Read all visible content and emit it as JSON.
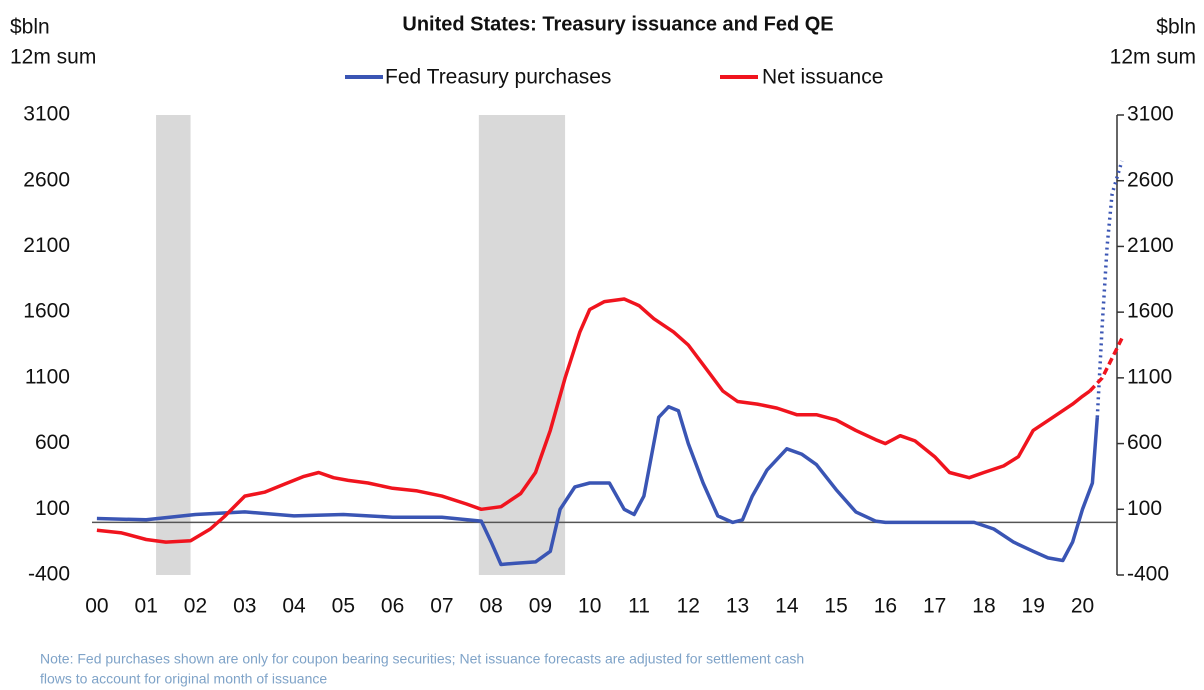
{
  "chart_data": {
    "type": "line",
    "title": "United States: Treasury issuance and Fed QE",
    "y_label": [
      "$bln",
      "12m sum"
    ],
    "y2_label": [
      "$bln",
      "12m sum"
    ],
    "note": [
      "Note: Fed purchases shown are only for coupon bearing securities; Net issuance forecasts are adjusted for settlement cash",
      "flows to account for original month of issuance"
    ],
    "xlim": [
      1999.9,
      2020.7
    ],
    "xticks": [
      {
        "value": 2000,
        "label": "00"
      },
      {
        "value": 2001,
        "label": "01"
      },
      {
        "value": 2002,
        "label": "02"
      },
      {
        "value": 2003,
        "label": "03"
      },
      {
        "value": 2004,
        "label": "04"
      },
      {
        "value": 2005,
        "label": "05"
      },
      {
        "value": 2006,
        "label": "06"
      },
      {
        "value": 2007,
        "label": "07"
      },
      {
        "value": 2008,
        "label": "08"
      },
      {
        "value": 2009,
        "label": "09"
      },
      {
        "value": 2010,
        "label": "10"
      },
      {
        "value": 2011,
        "label": "11"
      },
      {
        "value": 2012,
        "label": "12"
      },
      {
        "value": 2013,
        "label": "13"
      },
      {
        "value": 2014,
        "label": "14"
      },
      {
        "value": 2015,
        "label": "15"
      },
      {
        "value": 2016,
        "label": "16"
      },
      {
        "value": 2017,
        "label": "17"
      },
      {
        "value": 2018,
        "label": "18"
      },
      {
        "value": 2019,
        "label": "19"
      },
      {
        "value": 2020,
        "label": "20"
      }
    ],
    "ylim": [
      -400,
      3100
    ],
    "yticks": [
      -400,
      100,
      600,
      1100,
      1600,
      2100,
      2600,
      3100
    ],
    "y2lim": [
      -400,
      3100
    ],
    "y2ticks": [
      -400,
      100,
      600,
      1100,
      1600,
      2100,
      2600,
      3100
    ],
    "zero_line": 0,
    "shaded": [
      [
        2001.2,
        2001.9
      ],
      [
        2007.75,
        2009.5
      ]
    ],
    "shade_color": "#d9d9d9",
    "series": [
      {
        "name": "Fed Treasury purchases",
        "color": "#3a55b4",
        "style": "solid",
        "x": [
          2000.0,
          2001.0,
          2002.0,
          2003.0,
          2004.0,
          2005.0,
          2006.0,
          2007.0,
          2007.8,
          2008.0,
          2008.2,
          2008.5,
          2008.9,
          2009.2,
          2009.4,
          2009.7,
          2010.0,
          2010.4,
          2010.7,
          2010.9,
          2011.1,
          2011.4,
          2011.6,
          2011.8,
          2012.0,
          2012.3,
          2012.6,
          2012.9,
          2013.1,
          2013.3,
          2013.6,
          2014.0,
          2014.3,
          2014.6,
          2015.0,
          2015.4,
          2015.8,
          2016.0,
          2017.0,
          2017.8,
          2018.2,
          2018.6,
          2019.0,
          2019.3,
          2019.6,
          2019.8,
          2020.0,
          2020.2,
          2020.3
        ],
        "values": [
          30,
          20,
          60,
          80,
          50,
          60,
          40,
          40,
          10,
          -150,
          -320,
          -310,
          -300,
          -220,
          100,
          270,
          300,
          300,
          100,
          60,
          200,
          800,
          880,
          850,
          600,
          300,
          50,
          0,
          20,
          200,
          400,
          560,
          520,
          440,
          250,
          80,
          10,
          0,
          0,
          0,
          -50,
          -150,
          -220,
          -270,
          -290,
          -150,
          100,
          300,
          800
        ]
      },
      {
        "name": "Net issuance",
        "color": "#f0141e",
        "style": "solid",
        "x": [
          2000.0,
          2000.5,
          2001.0,
          2001.4,
          2001.9,
          2002.3,
          2002.6,
          2003.0,
          2003.4,
          2003.8,
          2004.2,
          2004.5,
          2004.8,
          2005.1,
          2005.5,
          2006.0,
          2006.5,
          2007.0,
          2007.5,
          2007.8,
          2008.2,
          2008.6,
          2008.9,
          2009.2,
          2009.5,
          2009.8,
          2010.0,
          2010.3,
          2010.7,
          2011.0,
          2011.3,
          2011.7,
          2012.0,
          2012.3,
          2012.7,
          2013.0,
          2013.4,
          2013.8,
          2014.2,
          2014.6,
          2015.0,
          2015.4,
          2015.8,
          2016.0,
          2016.3,
          2016.6,
          2017.0,
          2017.3,
          2017.7,
          2018.0,
          2018.4,
          2018.7,
          2019.0,
          2019.4,
          2019.8,
          2020.0,
          2020.15
        ],
        "values": [
          -60,
          -80,
          -130,
          -150,
          -140,
          -50,
          50,
          200,
          230,
          290,
          350,
          380,
          340,
          320,
          300,
          260,
          240,
          200,
          140,
          100,
          120,
          220,
          380,
          700,
          1100,
          1450,
          1620,
          1680,
          1700,
          1650,
          1550,
          1450,
          1350,
          1200,
          1000,
          920,
          900,
          870,
          820,
          820,
          780,
          700,
          630,
          600,
          660,
          620,
          500,
          380,
          340,
          380,
          430,
          500,
          700,
          800,
          900,
          960,
          1000
        ]
      },
      {
        "color": "#3a55b4",
        "style": "dotted",
        "x": [
          2020.3,
          2020.4,
          2020.5,
          2020.6,
          2020.8
        ],
        "values": [
          800,
          1500,
          2100,
          2500,
          2750
        ]
      },
      {
        "color": "#f0141e",
        "style": "dashed",
        "x": [
          2020.15,
          2020.4,
          2020.6,
          2020.8
        ],
        "values": [
          1000,
          1100,
          1250,
          1400
        ]
      }
    ]
  }
}
